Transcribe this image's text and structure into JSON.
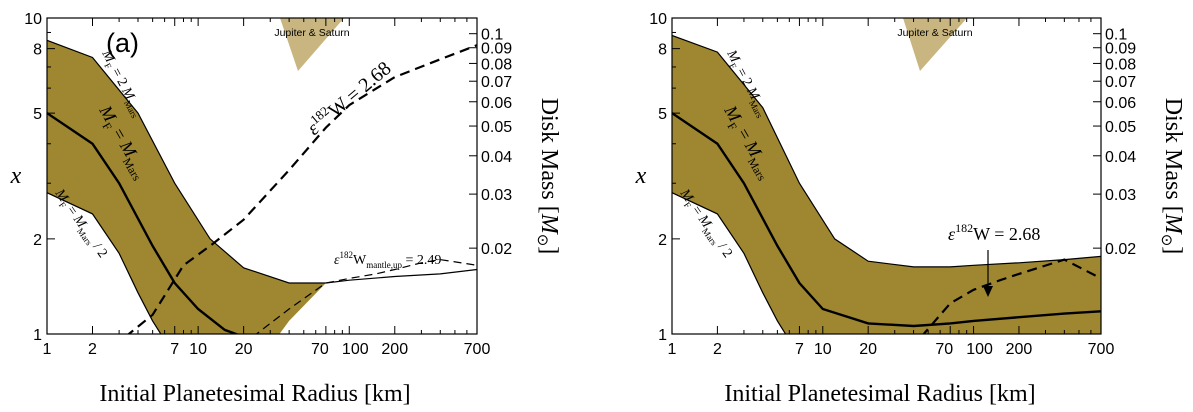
{
  "chart_data": [
    {
      "type": "area",
      "panel_label": "(a)",
      "xlabel": "Initial Planetesimal Radius [km]",
      "ylabel_left": "x",
      "ylabel_right": "Disk Mass [M⊙]",
      "xscale": "log",
      "yscale": "log",
      "xlim": [
        1,
        700
      ],
      "ylim_left": [
        1,
        10
      ],
      "ylim_right_range": [
        0.0105,
        0.1125
      ],
      "x_ticks": [
        "1",
        "2",
        "7",
        "10",
        "20",
        "70",
        "100",
        "200",
        "700"
      ],
      "y_ticks_left": [
        "1",
        "2",
        "5",
        "8",
        "10"
      ],
      "y_ticks_right": [
        "0.02",
        "0.03",
        "0.04",
        "0.05",
        "0.06",
        "0.07",
        "0.08",
        "0.09",
        "0.1"
      ],
      "marker_label": "Jupiter & Saturn",
      "band": {
        "upper": {
          "x": [
            1,
            2,
            4,
            7,
            12,
            20,
            40,
            70,
            100,
            200,
            400,
            700
          ],
          "y": [
            8.5,
            7.5,
            5.0,
            3.0,
            2.0,
            1.62,
            1.45,
            1.45,
            1.48,
            1.52,
            1.55,
            1.6
          ]
        },
        "lower": {
          "x": [
            1,
            2,
            3,
            4,
            5,
            6.5,
            10,
            20,
            40,
            70,
            100,
            200,
            400,
            700
          ],
          "y": [
            2.8,
            2.4,
            1.8,
            1.35,
            1.1,
            0.9,
            0.7,
            0.7,
            1.1,
            1.45,
            1.48,
            1.52,
            1.55,
            1.6
          ]
        }
      },
      "series": [
        {
          "name": "M_F = 2 M_Mars",
          "x": [
            1,
            2,
            4,
            7,
            12,
            20,
            40,
            70,
            100,
            200,
            400,
            700
          ],
          "y": [
            8.5,
            7.5,
            5.0,
            3.0,
            2.0,
            1.62,
            1.45,
            1.45,
            1.48,
            1.52,
            1.55,
            1.6
          ]
        },
        {
          "name": "M_F = M_Mars",
          "x": [
            1,
            2,
            3,
            5,
            7,
            10,
            15,
            20
          ],
          "y": [
            5.0,
            4.0,
            3.0,
            1.9,
            1.45,
            1.2,
            1.03,
            0.98
          ]
        },
        {
          "name": "M_F = M_Mars / 2",
          "x": [
            1,
            2,
            3,
            4,
            5,
            6.5
          ],
          "y": [
            2.8,
            2.4,
            1.8,
            1.35,
            1.1,
            0.9
          ]
        },
        {
          "name": "ε182W = 2.68",
          "style": "dashed",
          "x": [
            3.3,
            5,
            8,
            12,
            20,
            40,
            70,
            100,
            200,
            400,
            700
          ],
          "y": [
            0.98,
            1.15,
            1.65,
            1.9,
            2.3,
            3.3,
            4.5,
            5.3,
            6.5,
            7.4,
            8.2
          ]
        },
        {
          "name": "ε182W mantle,up = 2.49",
          "style": "dashed",
          "x": [
            23,
            40,
            70,
            100,
            150,
            200,
            300,
            400,
            700
          ],
          "y": [
            0.98,
            1.2,
            1.45,
            1.5,
            1.55,
            1.6,
            1.68,
            1.72,
            1.65
          ]
        }
      ],
      "annotations": [
        {
          "text": "M",
          "sub": "F",
          "rest": " = 2 ",
          "m2": "M",
          "sub2": "Mars"
        },
        {
          "text": "M",
          "sub": "F",
          "rest": " = ",
          "m2": "M",
          "sub2": "Mars"
        },
        {
          "text": "M",
          "sub": "F",
          "rest": " = ",
          "m2": "M",
          "sub2": "Mars",
          "tail": " / 2"
        },
        {
          "pre": "ε",
          "sup": "182",
          "rest": "W = 2.68"
        },
        {
          "pre": "ε",
          "sup": "182",
          "mid": "W",
          "sub": "mantle,up",
          "rest": " = 2.49"
        }
      ]
    },
    {
      "type": "area",
      "xlabel": "Initial Planetesimal Radius [km]",
      "ylabel_left": "x",
      "ylabel_right": "Disk Mass [M⊙]",
      "xscale": "log",
      "yscale": "log",
      "xlim": [
        1,
        700
      ],
      "ylim_left": [
        1,
        10
      ],
      "ylim_right_range": [
        0.0105,
        0.1125
      ],
      "x_ticks": [
        "1",
        "2",
        "7",
        "10",
        "20",
        "70",
        "100",
        "200",
        "700"
      ],
      "y_ticks_left": [
        "1",
        "2",
        "5",
        "8",
        "10"
      ],
      "y_ticks_right": [
        "0.02",
        "0.03",
        "0.04",
        "0.05",
        "0.06",
        "0.07",
        "0.08",
        "0.09",
        "0.1"
      ],
      "marker_label": "Jupiter & Saturn",
      "band": {
        "upper": {
          "x": [
            1,
            2,
            4,
            7,
            12,
            20,
            40,
            70,
            100,
            200,
            400,
            700
          ],
          "y": [
            8.8,
            7.8,
            5.2,
            3.0,
            2.0,
            1.7,
            1.63,
            1.63,
            1.65,
            1.68,
            1.72,
            1.76
          ]
        },
        "lower": {
          "x": [
            1,
            2,
            3,
            4,
            5,
            6.5,
            10,
            20,
            40,
            70,
            100,
            200,
            400,
            700
          ],
          "y": [
            2.8,
            2.4,
            1.8,
            1.35,
            1.1,
            0.9,
            0.8,
            0.8,
            0.8,
            0.8,
            0.8,
            0.8,
            0.8,
            0.8
          ]
        }
      },
      "series": [
        {
          "name": "M_F = 2 M_Mars",
          "x": [
            1,
            2,
            4,
            7,
            12,
            20,
            40,
            70,
            100,
            200,
            400,
            700
          ],
          "y": [
            8.8,
            7.8,
            5.2,
            3.0,
            2.0,
            1.7,
            1.63,
            1.63,
            1.65,
            1.68,
            1.72,
            1.76
          ]
        },
        {
          "name": "M_F = M_Mars",
          "x": [
            1,
            2,
            3,
            5,
            7,
            10,
            20,
            40,
            70,
            100,
            200,
            400,
            700
          ],
          "y": [
            5.0,
            4.0,
            3.0,
            1.9,
            1.45,
            1.2,
            1.08,
            1.06,
            1.08,
            1.1,
            1.13,
            1.16,
            1.18
          ]
        },
        {
          "name": "M_F = M_Mars / 2",
          "x": [
            1,
            2,
            3,
            4,
            5,
            6.5
          ],
          "y": [
            2.8,
            2.4,
            1.8,
            1.35,
            1.1,
            0.9
          ]
        },
        {
          "name": "ε182W = 2.68",
          "style": "dashed",
          "x": [
            45,
            70,
            100,
            150,
            200,
            400,
            700
          ],
          "y": [
            0.98,
            1.25,
            1.38,
            1.48,
            1.55,
            1.72,
            1.5
          ]
        }
      ],
      "annotations": [
        {
          "text": "M",
          "sub": "F",
          "rest": " = 2 ",
          "m2": "M",
          "sub2": "Mars"
        },
        {
          "text": "M",
          "sub": "F",
          "rest": " = ",
          "m2": "M",
          "sub2": "Mars"
        },
        {
          "text": "M",
          "sub": "F",
          "rest": " = ",
          "m2": "M",
          "sub2": "Mars",
          "tail": " / 2"
        },
        {
          "pre": "ε",
          "sup": "182",
          "rest": "W = 2.68"
        }
      ]
    }
  ],
  "colors": {
    "band": "#9e8730",
    "marker": "#c9b57f",
    "line": "#000000"
  }
}
